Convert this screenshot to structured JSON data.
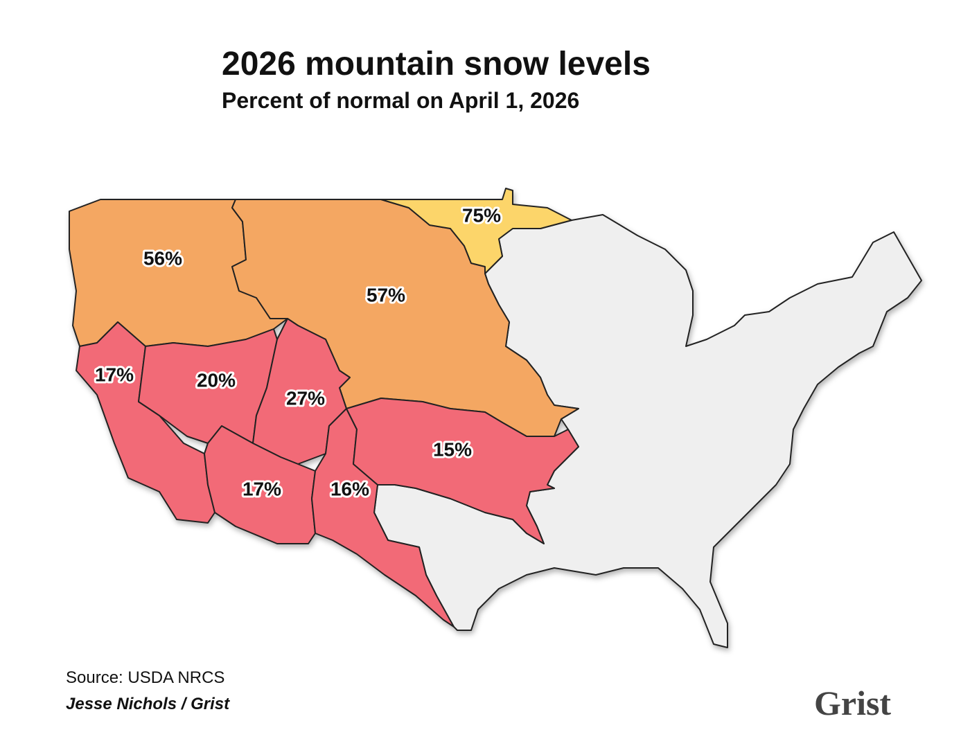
{
  "header": {
    "title": "2026 mountain snow levels",
    "subtitle": "Percent of normal on April 1, 2026"
  },
  "map": {
    "regions": [
      {
        "label": "56%",
        "color": "#f4a762"
      },
      {
        "label": "57%",
        "color": "#f4a762"
      },
      {
        "label": "75%",
        "color": "#fcd56a"
      },
      {
        "label": "17%",
        "color": "#f26b77"
      },
      {
        "label": "20%",
        "color": "#f26b77"
      },
      {
        "label": "27%",
        "color": "#f26b77"
      },
      {
        "label": "17%",
        "color": "#f26b77"
      },
      {
        "label": "16%",
        "color": "#f26b77"
      },
      {
        "label": "15%",
        "color": "#f26b77"
      }
    ]
  },
  "footer": {
    "source": "Source: USDA NRCS",
    "credit": "Jesse Nichols / Grist",
    "logo": "Grist"
  }
}
